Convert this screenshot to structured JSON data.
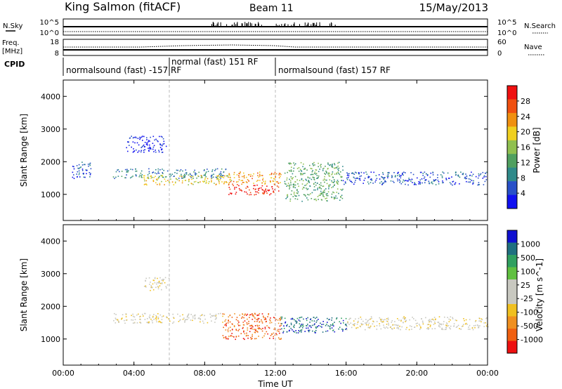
{
  "header": {
    "station": "King Salmon (fitACF)",
    "beam": "Beam 11",
    "date": "15/May/2013"
  },
  "status_panel": {
    "nsky_label": "N.Sky",
    "nsky_ticks": [
      "10^5",
      "10^0"
    ],
    "freq_label_1": "Freq.",
    "freq_label_2": "[MHz]",
    "freq_ticks": [
      "18",
      "8"
    ],
    "cpid_label": "CPID",
    "nsearch_label": "N.Search",
    "nsearch_ticks": [
      "10^5",
      "10^0"
    ],
    "nave_label": "Nave",
    "nave_ticks": [
      "60",
      "0"
    ],
    "cpid_segments": [
      {
        "label": "normalsound (fast) -157 RF",
        "start_hour": 0,
        "end_hour": 6
      },
      {
        "label": "normal (fast) 151 RF",
        "start_hour": 6,
        "end_hour": 12
      },
      {
        "label": "normalsound (fast) 157 RF",
        "start_hour": 12,
        "end_hour": 24
      }
    ]
  },
  "chart_data": [
    {
      "type": "heatmap",
      "name": "power-panel",
      "xlabel": "",
      "ylabel": "Slant Range [km]",
      "xlim": [
        0,
        24
      ],
      "ylim": [
        200,
        4500
      ],
      "yticks": [
        "4000",
        "3000",
        "2000",
        "1000"
      ],
      "colorbar": {
        "label": "Power [dB]",
        "ticks": [
          "28",
          "24",
          "20",
          "16",
          "12",
          "8",
          "4"
        ],
        "colors": [
          "#1010f0",
          "#2850c8",
          "#2f8a8a",
          "#50a060",
          "#90c050",
          "#f0d020",
          "#f09010",
          "#f05010",
          "#f01010"
        ]
      },
      "echo_bands": [
        {
          "start_hour": 0.5,
          "end_hour": 1.6,
          "range_low": 1500,
          "range_high": 2000,
          "level": 1
        },
        {
          "start_hour": 2.8,
          "end_hour": 9.2,
          "range_low": 1500,
          "range_high": 1800,
          "level": 2
        },
        {
          "start_hour": 4.5,
          "end_hour": 9.5,
          "range_low": 1300,
          "range_high": 1600,
          "level": 5
        },
        {
          "start_hour": 9.3,
          "end_hour": 12.2,
          "range_low": 1000,
          "range_high": 1300,
          "level": 8
        },
        {
          "start_hour": 9.3,
          "end_hour": 12.3,
          "range_low": 1300,
          "range_high": 1700,
          "level": 6
        },
        {
          "start_hour": 12.5,
          "end_hour": 15.8,
          "range_low": 800,
          "range_high": 2000,
          "level": 3
        },
        {
          "start_hour": 15.8,
          "end_hour": 24,
          "range_low": 1300,
          "range_high": 1700,
          "level": 1
        },
        {
          "start_hour": 3.5,
          "end_hour": 5.8,
          "range_low": 2300,
          "range_high": 2800,
          "level": 0
        }
      ]
    },
    {
      "type": "heatmap",
      "name": "velocity-panel",
      "xlabel": "Time UT",
      "ylabel": "Slant Range [km]",
      "xlim": [
        0,
        24
      ],
      "ylim": [
        200,
        4500
      ],
      "xticks": [
        "00:00",
        "04:00",
        "08:00",
        "12:00",
        "16:00",
        "20:00",
        "00:00"
      ],
      "yticks": [
        "4000",
        "3000",
        "2000",
        "1000"
      ],
      "colorbar": {
        "label": "Velocity [m s^-1]",
        "ticks": [
          "1000",
          "500",
          "100",
          "25",
          "-25",
          "-100",
          "-500",
          "-1000"
        ],
        "colors": [
          "#ee1010",
          "#f06010",
          "#f09020",
          "#f0c020",
          "#c8c8c0",
          "#c8c8c0",
          "#60c040",
          "#30a060",
          "#207080",
          "#1010d0"
        ]
      },
      "echo_bands": [
        {
          "start_hour": 2.8,
          "end_hour": 9.0,
          "range_low": 1500,
          "range_high": 1800,
          "level": 4
        },
        {
          "start_hour": 9.0,
          "end_hour": 12.3,
          "range_low": 1000,
          "range_high": 1800,
          "level": 1
        },
        {
          "start_hour": 12.3,
          "end_hour": 16.0,
          "range_low": 1200,
          "range_high": 1700,
          "level": 8
        },
        {
          "start_hour": 16.0,
          "end_hour": 24,
          "range_low": 1300,
          "range_high": 1700,
          "level": 4
        },
        {
          "start_hour": 4.5,
          "end_hour": 6.0,
          "range_low": 2500,
          "range_high": 2900,
          "level": 4
        }
      ]
    }
  ]
}
